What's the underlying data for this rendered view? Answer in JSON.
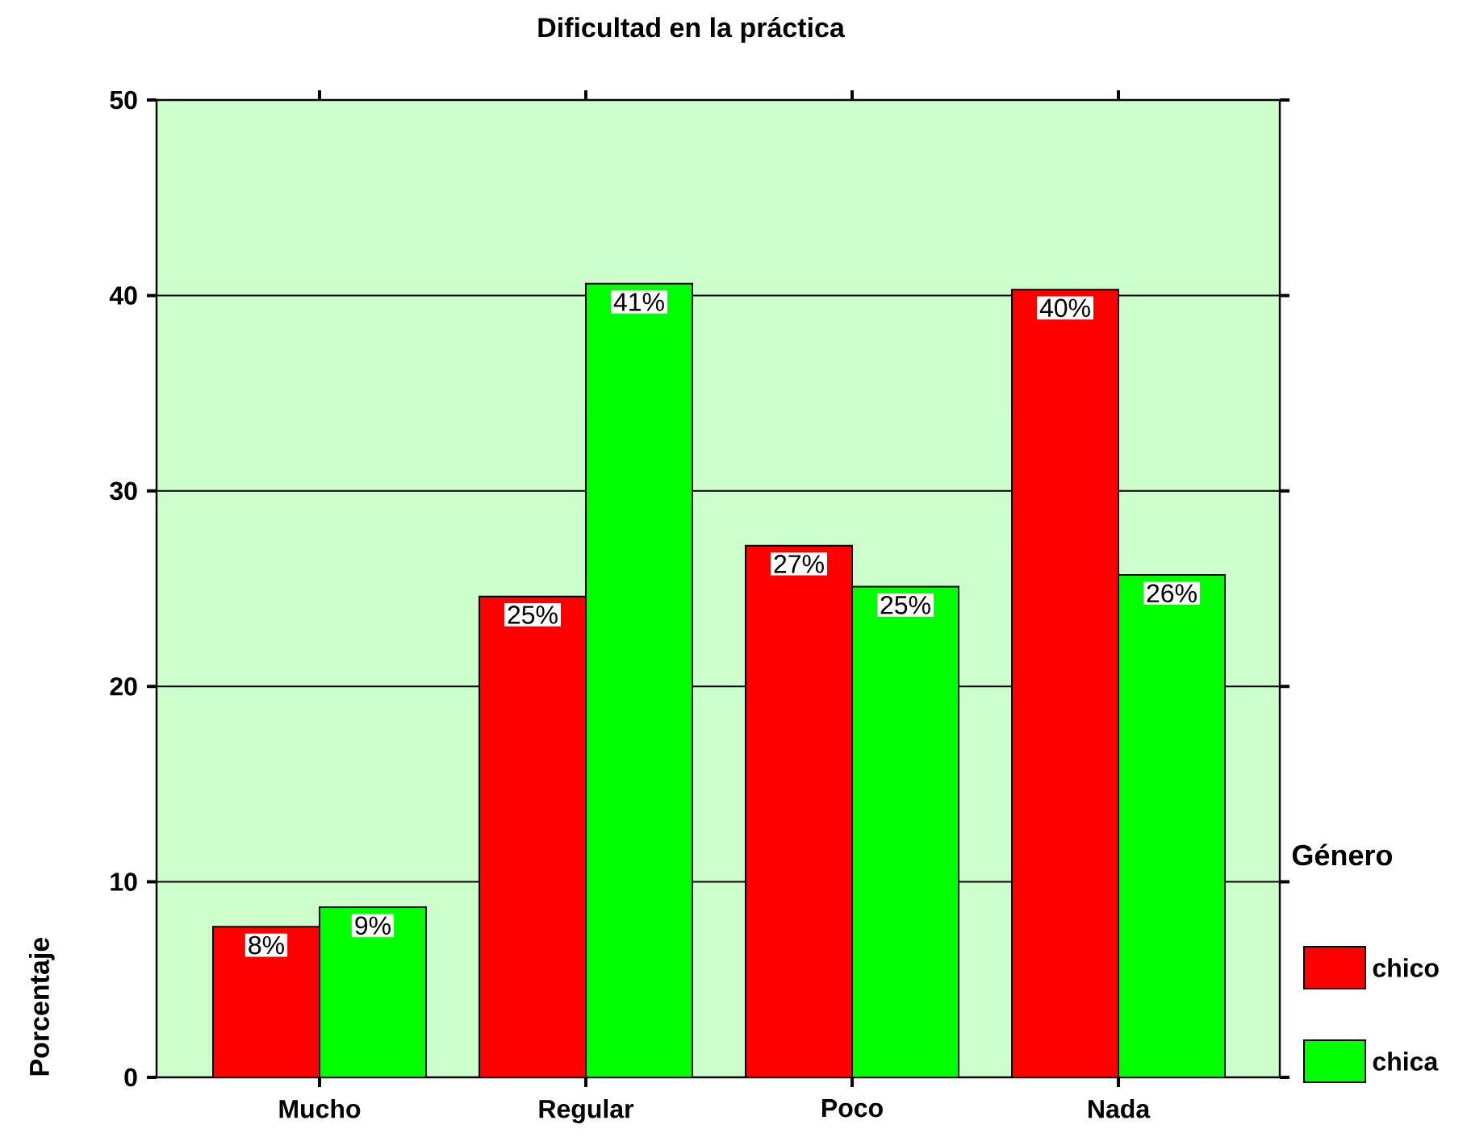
{
  "chart_data": {
    "type": "bar",
    "title": "Dificultad en la práctica",
    "ylabel": "Porcentaje",
    "legend_title": "Género",
    "categories": [
      "Mucho",
      "Regular",
      "Poco",
      "Nada"
    ],
    "series": [
      {
        "name": "chico",
        "color": "#ff0000",
        "values": [
          7.7,
          24.6,
          27.2,
          40.3
        ],
        "value_labels": [
          "8%",
          "25%",
          "27%",
          "40%"
        ]
      },
      {
        "name": "chica",
        "color": "#00ff00",
        "values": [
          8.7,
          40.6,
          25.1,
          25.7
        ],
        "value_labels": [
          "9%",
          "41%",
          "25%",
          "26%"
        ]
      }
    ],
    "ylim": [
      0,
      50
    ],
    "yticks": [
      0,
      10,
      20,
      30,
      40,
      50
    ],
    "grid": "y",
    "legend": "right"
  }
}
